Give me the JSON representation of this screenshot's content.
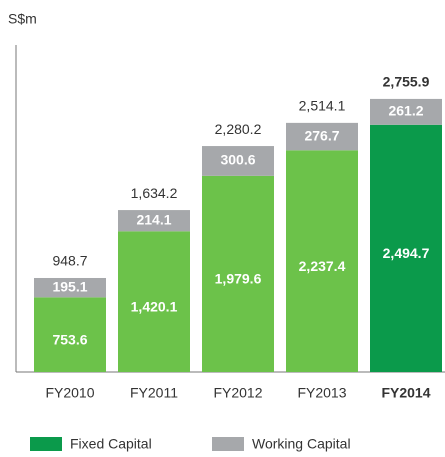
{
  "chart_data": {
    "type": "stacked_bar",
    "y_label": "S$m",
    "categories": [
      "FY2010",
      "FY2011",
      "FY2012",
      "FY2013",
      "FY2014"
    ],
    "series": [
      {
        "name": "Fixed Capital",
        "color": "#0b9a4b",
        "bar_colors": [
          "#6cc24a",
          "#6cc24a",
          "#6cc24a",
          "#6cc24a",
          "#0b9a4b"
        ],
        "values": [
          753.6,
          1420.1,
          1979.6,
          2237.4,
          2494.7
        ],
        "value_labels": [
          "753.6",
          "1,420.1",
          "1,979.6",
          "2,237.4",
          "2,494.7"
        ]
      },
      {
        "name": "Working Capital",
        "color": "#a6a8ab",
        "values": [
          195.1,
          214.1,
          300.6,
          276.7,
          261.2
        ]
      }
    ],
    "totals": [
      948.7,
      1634.2,
      2280.2,
      2514.1,
      2755.9
    ],
    "total_labels": [
      "948.7",
      "1,634.2",
      "2,280.2",
      "2,514.1",
      "2,755.9"
    ],
    "highlight_index": 4,
    "ylim": [
      0,
      3300
    ],
    "legend": "bottom"
  }
}
